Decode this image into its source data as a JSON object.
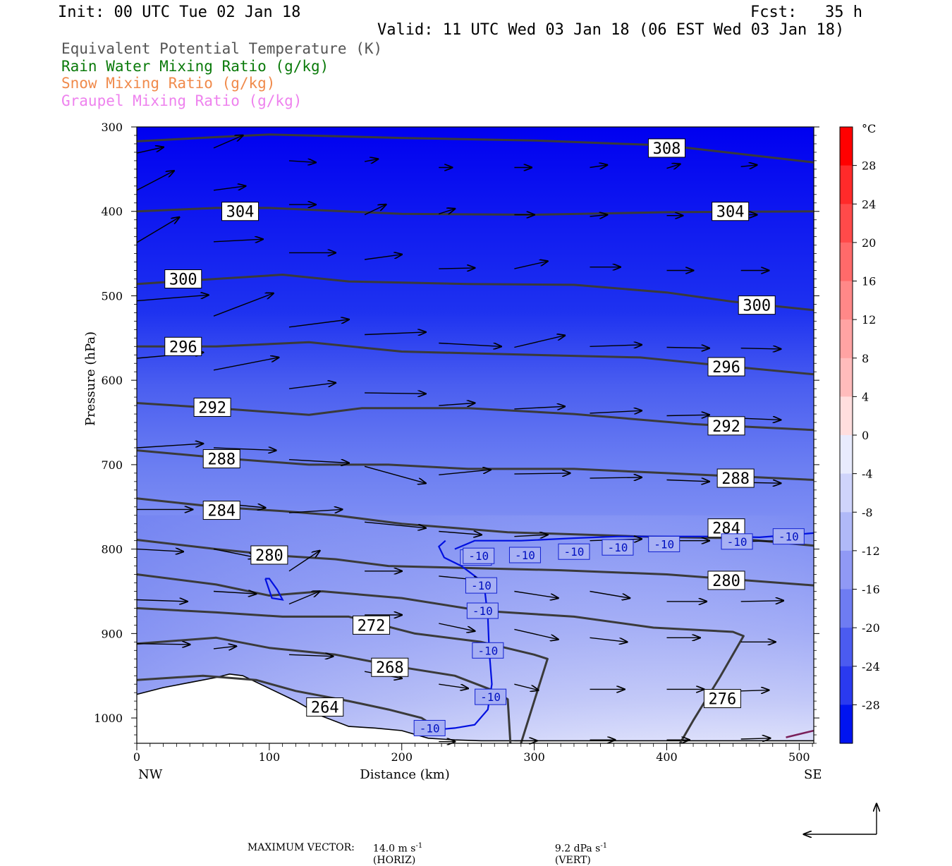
{
  "header": {
    "init": "Init: 00 UTC Tue 02 Jan 18",
    "fcst": "Fcst:   35 h",
    "valid": "Valid: 11 UTC Wed 03 Jan 18 (06 EST Wed 03 Jan 18)"
  },
  "legend": [
    {
      "label": "Equivalent Potential Temperature (K)",
      "color": "#555555"
    },
    {
      "label": "Rain Water Mixing Ratio (g/kg)",
      "color": "#0a7a0a"
    },
    {
      "label": "Snow Mixing Ratio (g/kg)",
      "color": "#f08a4b"
    },
    {
      "label": "Graupel Mixing Ratio (g/kg)",
      "color": "#ee82ee"
    }
  ],
  "chart_data": {
    "type": "heatmap",
    "xlabel": "Distance (km)",
    "ylabel": "Pressure (hPa)",
    "x_ticks": [
      "0",
      "100",
      "200",
      "300",
      "400",
      "500"
    ],
    "x_end_labels": {
      "left": "NW",
      "right": "SE"
    },
    "y_ticks": [
      "300",
      "400",
      "500",
      "600",
      "700",
      "800",
      "900",
      "1000"
    ],
    "xlim": [
      0,
      511
    ],
    "ylim": [
      1030,
      300
    ],
    "colorbar": {
      "unit": "°C",
      "ticks": [
        "28",
        "24",
        "20",
        "16",
        "12",
        "8",
        "4",
        "0",
        "-4",
        "-8",
        "-12",
        "-16",
        "-20",
        "-24",
        "-28"
      ],
      "range": [
        -32,
        32
      ]
    },
    "theta_e_contours": [
      {
        "value": "308",
        "label_xy": [
          [
            400,
            325
          ]
        ],
        "points": [
          [
            0,
            317
          ],
          [
            60,
            312
          ],
          [
            100,
            309
          ],
          [
            200,
            313
          ],
          [
            300,
            316
          ],
          [
            400,
            322
          ],
          [
            511,
            342
          ]
        ]
      },
      {
        "value": "304",
        "label_xy": [
          [
            78,
            400
          ],
          [
            448,
            400
          ]
        ],
        "points": [
          [
            0,
            400
          ],
          [
            60,
            396
          ],
          [
            100,
            396
          ],
          [
            200,
            403
          ],
          [
            300,
            404
          ],
          [
            400,
            401
          ],
          [
            511,
            400
          ]
        ]
      },
      {
        "value": "300",
        "label_xy": [
          [
            35,
            480
          ],
          [
            468,
            511
          ]
        ],
        "points": [
          [
            0,
            486
          ],
          [
            60,
            480
          ],
          [
            110,
            475
          ],
          [
            160,
            483
          ],
          [
            250,
            486
          ],
          [
            330,
            487
          ],
          [
            400,
            496
          ],
          [
            450,
            507
          ],
          [
            511,
            517
          ]
        ]
      },
      {
        "value": "296",
        "label_xy": [
          [
            35,
            560
          ],
          [
            445,
            584
          ]
        ],
        "points": [
          [
            0,
            560
          ],
          [
            60,
            560
          ],
          [
            130,
            555
          ],
          [
            200,
            566
          ],
          [
            300,
            570
          ],
          [
            380,
            573
          ],
          [
            450,
            584
          ],
          [
            511,
            593
          ]
        ]
      },
      {
        "value": "292",
        "label_xy": [
          [
            57,
            632
          ],
          [
            445,
            654
          ]
        ],
        "points": [
          [
            0,
            627
          ],
          [
            60,
            633
          ],
          [
            130,
            641
          ],
          [
            170,
            633
          ],
          [
            250,
            633
          ],
          [
            330,
            640
          ],
          [
            420,
            652
          ],
          [
            511,
            659
          ]
        ]
      },
      {
        "value": "288",
        "label_xy": [
          [
            64,
            693
          ],
          [
            452,
            716
          ]
        ],
        "points": [
          [
            0,
            683
          ],
          [
            70,
            693
          ],
          [
            130,
            700
          ],
          [
            190,
            700
          ],
          [
            250,
            705
          ],
          [
            330,
            705
          ],
          [
            400,
            710
          ],
          [
            511,
            718
          ]
        ]
      },
      {
        "value": "284",
        "label_xy": [
          [
            64,
            754
          ],
          [
            445,
            775
          ]
        ],
        "points": [
          [
            0,
            740
          ],
          [
            60,
            750
          ],
          [
            110,
            755
          ],
          [
            150,
            760
          ],
          [
            200,
            770
          ],
          [
            280,
            780
          ],
          [
            380,
            785
          ],
          [
            450,
            787
          ],
          [
            511,
            796
          ]
        ]
      },
      {
        "value": "280",
        "label_xy": [
          [
            100,
            807
          ],
          [
            445,
            837
          ]
        ],
        "points": [
          [
            0,
            789
          ],
          [
            60,
            800
          ],
          [
            110,
            808
          ],
          [
            150,
            812
          ],
          [
            190,
            820
          ],
          [
            240,
            822
          ],
          [
            320,
            825
          ],
          [
            400,
            830
          ],
          [
            511,
            843
          ]
        ]
      },
      {
        "value": "276",
        "label_xy": [
          [
            442,
            977
          ]
        ],
        "points": [
          [
            0,
            830
          ],
          [
            60,
            842
          ],
          [
            100,
            855
          ],
          [
            140,
            850
          ],
          [
            200,
            858
          ],
          [
            260,
            873
          ],
          [
            330,
            880
          ],
          [
            390,
            893
          ],
          [
            450,
            898
          ],
          [
            458,
            903
          ],
          [
            440,
            952
          ],
          [
            420,
            1003
          ],
          [
            410,
            1030
          ]
        ]
      },
      {
        "value": "272",
        "label_xy": [
          [
            177,
            890
          ]
        ],
        "points": [
          [
            0,
            870
          ],
          [
            60,
            875
          ],
          [
            110,
            880
          ],
          [
            160,
            880
          ],
          [
            210,
            900
          ],
          [
            260,
            910
          ],
          [
            300,
            925
          ],
          [
            310,
            930
          ],
          [
            300,
            980
          ],
          [
            290,
            1030
          ]
        ]
      },
      {
        "value": "268",
        "label_xy": [
          [
            191,
            940
          ]
        ],
        "points": [
          [
            0,
            912
          ],
          [
            60,
            905
          ],
          [
            100,
            917
          ],
          [
            150,
            925
          ],
          [
            200,
            940
          ],
          [
            240,
            950
          ],
          [
            270,
            968
          ],
          [
            280,
            978
          ],
          [
            282,
            1030
          ]
        ]
      },
      {
        "value": "264",
        "label_xy": [
          [
            142,
            987
          ]
        ],
        "points": [
          [
            0,
            955
          ],
          [
            50,
            950
          ],
          [
            90,
            955
          ],
          [
            120,
            968
          ],
          [
            160,
            980
          ],
          [
            190,
            990
          ],
          [
            215,
            1000
          ],
          [
            225,
            1010
          ]
        ]
      }
    ],
    "temperature_contours": [
      {
        "value": "-10",
        "label_xy": [
          [
            256,
            810
          ],
          [
            260,
            843
          ],
          [
            261,
            873
          ],
          [
            265,
            920
          ],
          [
            267,
            975
          ],
          [
            221,
            1012
          ],
          [
            258,
            808
          ],
          [
            293,
            807
          ],
          [
            330,
            803
          ],
          [
            363,
            798
          ],
          [
            398,
            794
          ],
          [
            453,
            791
          ],
          [
            492,
            785
          ]
        ]
      }
    ],
    "footer": {
      "max_vector_label": "MAXIMUM VECTOR:",
      "horiz": "14.0 m s",
      "horiz_unit": "(HORIZ)",
      "vert": "9.2 dPa s",
      "vert_unit": "(VERT)",
      "exponent": "-1"
    }
  }
}
